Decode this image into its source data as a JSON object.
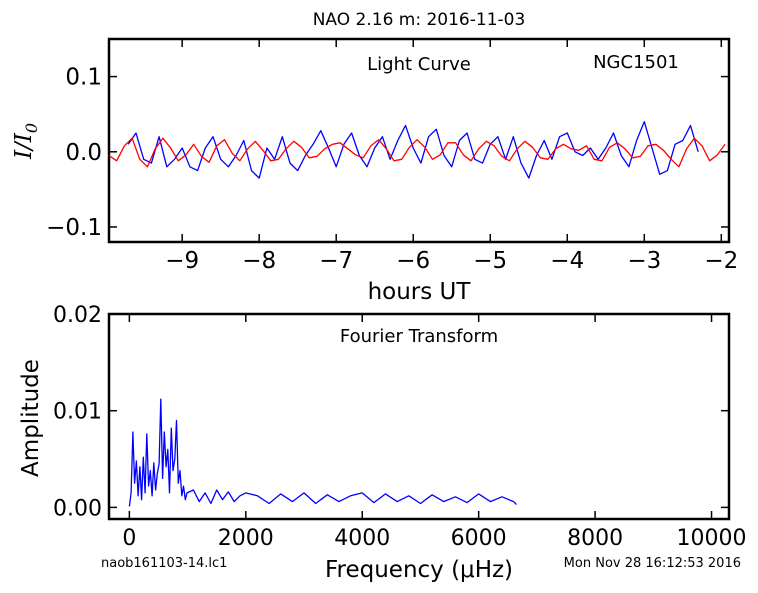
{
  "figure": {
    "title": "NAO 2.16 m:  2016-11-03",
    "footer_left": "naob161103-14.lc1",
    "footer_right": "Mon Nov 28 16:12:53 2016"
  },
  "chart_data": [
    {
      "type": "line",
      "title": "Light Curve",
      "annotation": "NGC1501",
      "xlabel": "hours UT",
      "ylabel": "I/I0",
      "xlim": [
        -9.95,
        -1.9
      ],
      "ylim": [
        -0.12,
        0.15
      ],
      "xticks": [
        -9,
        -8,
        -7,
        -6,
        -5,
        -4,
        -3,
        -2
      ],
      "xtick_labels": [
        "−9",
        "−8",
        "−7",
        "−6",
        "−5",
        "−4",
        "−3",
        "−2"
      ],
      "yticks": [
        0.1,
        0.0,
        -0.1
      ],
      "ytick_labels": [
        "0.1",
        "0.0",
        "−0.1"
      ],
      "series": [
        {
          "color": "#0000ff",
          "x": [
            -9.7,
            -9.6,
            -9.5,
            -9.4,
            -9.3,
            -9.2,
            -9.1,
            -9.0,
            -8.9,
            -8.8,
            -8.7,
            -8.6,
            -8.5,
            -8.4,
            -8.3,
            -8.2,
            -8.1,
            -8.0,
            -7.9,
            -7.8,
            -7.7,
            -7.6,
            -7.5,
            -7.4,
            -7.3,
            -7.2,
            -7.1,
            -7.0,
            -6.9,
            -6.8,
            -6.7,
            -6.6,
            -6.5,
            -6.4,
            -6.3,
            -6.2,
            -6.1,
            -6.0,
            -5.9,
            -5.8,
            -5.7,
            -5.6,
            -5.5,
            -5.4,
            -5.3,
            -5.2,
            -5.1,
            -5.0,
            -4.9,
            -4.8,
            -4.7,
            -4.6,
            -4.5,
            -4.4,
            -4.3,
            -4.2,
            -4.1,
            -4.0,
            -3.9,
            -3.8,
            -3.7,
            -3.6,
            -3.5,
            -3.4,
            -3.3,
            -3.2,
            -3.1,
            -3.0,
            -2.9,
            -2.8,
            -2.7,
            -2.6,
            -2.5,
            -2.4,
            -2.3
          ],
          "y": [
            0.01,
            0.025,
            -0.01,
            -0.015,
            0.02,
            -0.02,
            -0.01,
            0.005,
            -0.02,
            -0.025,
            0.005,
            0.02,
            -0.01,
            -0.02,
            -0.005,
            0.015,
            -0.025,
            -0.035,
            0.005,
            -0.01,
            0.02,
            -0.015,
            -0.025,
            -0.005,
            0.01,
            0.028,
            0.005,
            -0.02,
            0.01,
            0.025,
            -0.005,
            -0.02,
            0.005,
            0.02,
            -0.01,
            0.015,
            0.035,
            0.005,
            -0.015,
            0.02,
            0.03,
            -0.005,
            -0.02,
            0.015,
            0.025,
            -0.01,
            -0.015,
            0.01,
            0.02,
            -0.01,
            0.02,
            -0.015,
            -0.035,
            -0.005,
            0.015,
            -0.01,
            0.02,
            0.025,
            0.0,
            -0.005,
            0.005,
            -0.01,
            0.005,
            0.025,
            -0.005,
            -0.02,
            0.015,
            0.04,
            0.005,
            -0.03,
            -0.025,
            0.01,
            0.015,
            0.035,
            0.0
          ]
        },
        {
          "color": "#ff0000",
          "x": [
            -9.95,
            -9.85,
            -9.75,
            -9.65,
            -9.55,
            -9.45,
            -9.35,
            -9.25,
            -9.15,
            -9.05,
            -8.95,
            -8.85,
            -8.75,
            -8.65,
            -8.55,
            -8.45,
            -8.35,
            -8.25,
            -8.15,
            -8.05,
            -7.95,
            -7.85,
            -7.75,
            -7.65,
            -7.55,
            -7.45,
            -7.35,
            -7.25,
            -7.15,
            -7.05,
            -6.95,
            -6.85,
            -6.75,
            -6.65,
            -6.55,
            -6.45,
            -6.35,
            -6.25,
            -6.15,
            -6.05,
            -5.95,
            -5.85,
            -5.75,
            -5.65,
            -5.55,
            -5.45,
            -5.35,
            -5.25,
            -5.15,
            -5.05,
            -4.95,
            -4.85,
            -4.75,
            -4.65,
            -4.55,
            -4.45,
            -4.35,
            -4.25,
            -4.15,
            -4.05,
            -3.95,
            -3.85,
            -3.75,
            -3.65,
            -3.55,
            -3.45,
            -3.35,
            -3.25,
            -3.15,
            -3.05,
            -2.95,
            -2.85,
            -2.75,
            -2.65,
            -2.55,
            -2.45,
            -2.35,
            -2.25,
            -2.15,
            -2.05,
            -1.95
          ],
          "y": [
            -0.005,
            -0.012,
            0.008,
            0.018,
            -0.01,
            -0.02,
            0.004,
            0.018,
            0.005,
            -0.012,
            -0.004,
            0.01,
            -0.006,
            -0.014,
            0.008,
            0.016,
            -0.002,
            -0.012,
            0.004,
            0.014,
            0.002,
            -0.012,
            -0.01,
            0.004,
            0.014,
            0.006,
            -0.008,
            -0.006,
            0.004,
            0.01,
            0.012,
            0.004,
            -0.004,
            -0.008,
            0.008,
            0.016,
            0.004,
            -0.012,
            -0.01,
            0.006,
            0.016,
            0.006,
            -0.01,
            -0.004,
            0.012,
            0.012,
            -0.004,
            -0.012,
            0.004,
            0.014,
            0.008,
            -0.006,
            -0.012,
            0.004,
            0.014,
            0.006,
            -0.008,
            -0.01,
            0.004,
            0.01,
            0.004,
            0.002,
            0.008,
            -0.01,
            -0.012,
            0.006,
            0.012,
            0.004,
            -0.008,
            -0.006,
            0.008,
            0.01,
            0.002,
            -0.01,
            -0.02,
            0.004,
            0.018,
            0.008,
            -0.012,
            -0.004,
            0.01
          ]
        }
      ]
    },
    {
      "type": "line",
      "title": "Fourier Transform",
      "xlabel": "Frequency (μHz)",
      "ylabel": "Amplitude",
      "xlim": [
        -350,
        10300
      ],
      "ylim": [
        -0.0012,
        0.02
      ],
      "xticks": [
        0,
        2000,
        4000,
        6000,
        8000,
        10000
      ],
      "xtick_labels": [
        "0",
        "2000",
        "4000",
        "6000",
        "8000",
        "10000"
      ],
      "yticks": [
        0.02,
        0.01,
        0.0
      ],
      "ytick_labels": [
        "0.02",
        "0.01",
        "0.00"
      ],
      "series": [
        {
          "color": "#0000ff",
          "x": [
            0,
            30,
            60,
            90,
            120,
            150,
            180,
            210,
            240,
            270,
            300,
            330,
            360,
            390,
            420,
            450,
            480,
            510,
            540,
            570,
            600,
            630,
            660,
            690,
            720,
            750,
            780,
            810,
            840,
            870,
            900,
            930,
            960,
            990,
            1100,
            1200,
            1300,
            1400,
            1500,
            1600,
            1700,
            1800,
            1900,
            2000,
            2200,
            2400,
            2600,
            2800,
            3000,
            3200,
            3400,
            3600,
            3800,
            4000,
            4200,
            4400,
            4600,
            4800,
            5000,
            5200,
            5400,
            5600,
            5800,
            6000,
            6200,
            6400,
            6600,
            6650
          ],
          "y": [
            0.0001,
            0.0015,
            0.0078,
            0.0025,
            0.0048,
            0.0012,
            0.0042,
            0.0008,
            0.0052,
            0.0015,
            0.0076,
            0.0022,
            0.0038,
            0.0012,
            0.0046,
            0.0018,
            0.0035,
            0.0045,
            0.0112,
            0.003,
            0.0078,
            0.0042,
            0.006,
            0.0015,
            0.0082,
            0.0038,
            0.005,
            0.009,
            0.0025,
            0.0038,
            0.0012,
            0.0022,
            0.0008,
            0.0015,
            0.0018,
            0.0006,
            0.0015,
            0.0004,
            0.0018,
            0.0008,
            0.0016,
            0.0006,
            0.0012,
            0.0015,
            0.0012,
            0.0004,
            0.0014,
            0.0006,
            0.0015,
            0.0004,
            0.0013,
            0.0006,
            0.0012,
            0.0015,
            0.0005,
            0.0014,
            0.0006,
            0.0012,
            0.0004,
            0.0013,
            0.0006,
            0.0011,
            0.0005,
            0.0014,
            0.0006,
            0.0011,
            0.0006,
            0.0003
          ]
        }
      ]
    }
  ]
}
